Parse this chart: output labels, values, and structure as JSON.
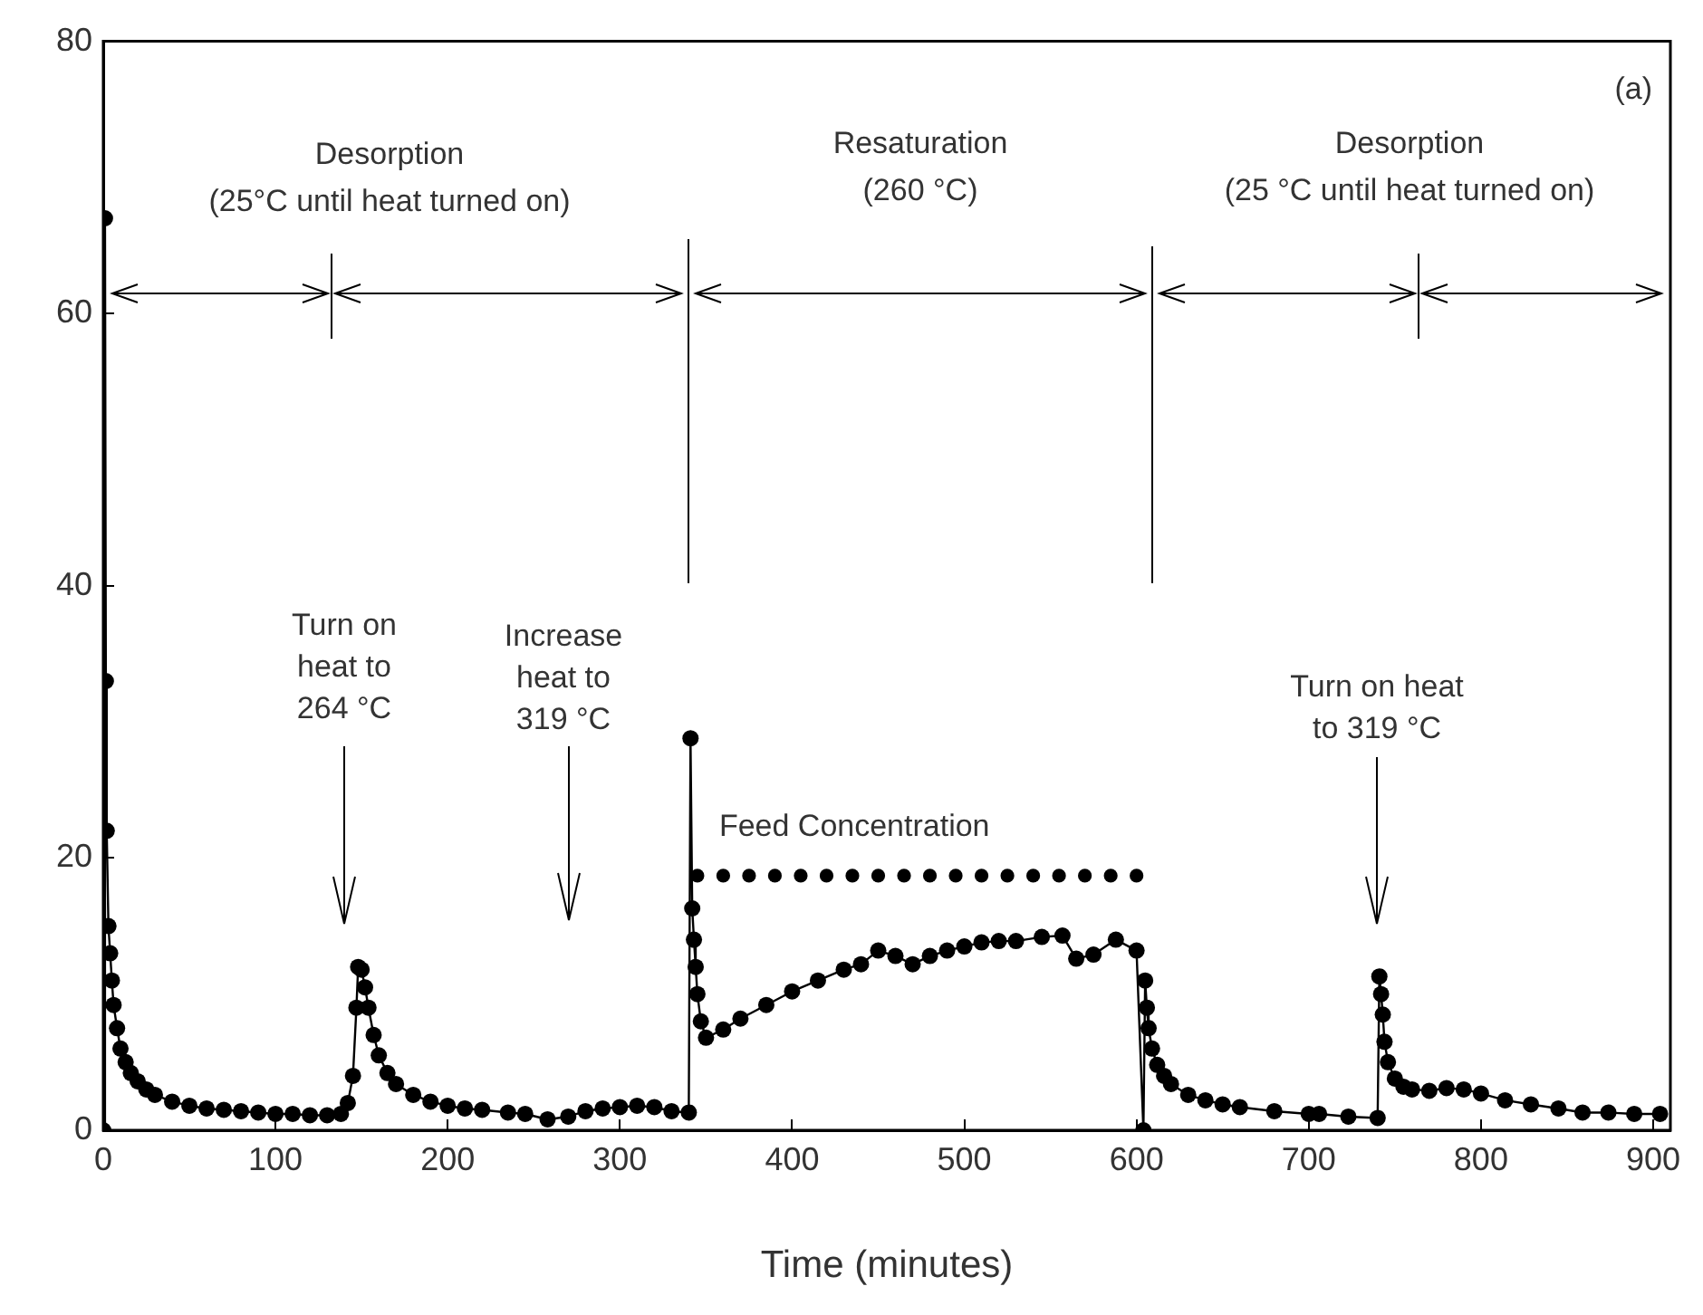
{
  "chart_data": {
    "type": "line",
    "xlabel": "Time (minutes)",
    "xlim": [
      0,
      910
    ],
    "xticks": [
      0,
      100,
      200,
      300,
      400,
      500,
      600,
      700,
      800,
      900
    ],
    "ylim": [
      0,
      80
    ],
    "yticks": [
      0,
      20,
      40,
      60,
      80
    ],
    "marker": "circle",
    "series": [
      {
        "type": "line",
        "color": "#000000",
        "x": [
          0,
          1,
          1.5,
          2,
          3,
          4,
          5,
          6,
          8,
          10,
          13,
          16,
          20,
          25,
          30,
          40,
          50,
          60,
          70,
          80,
          90,
          100,
          110,
          120,
          130,
          138,
          142,
          145,
          147,
          148,
          150,
          152,
          154,
          157,
          160,
          165,
          170,
          180,
          190,
          200,
          210,
          220,
          235,
          245,
          258,
          270,
          280,
          290,
          300,
          310,
          320,
          330,
          340,
          341,
          342,
          343,
          344,
          345,
          347,
          350,
          360,
          370,
          385,
          400,
          415,
          430,
          440,
          450,
          460,
          470,
          480,
          490,
          500,
          510,
          520,
          530,
          545,
          557,
          565,
          575,
          588,
          600,
          604,
          605,
          606,
          607,
          609,
          612,
          616,
          620,
          630,
          640,
          650,
          660,
          680,
          700,
          706,
          723,
          740,
          741,
          742,
          743,
          744,
          746,
          750,
          755,
          760,
          770,
          780,
          790,
          800,
          814,
          829,
          845,
          859,
          874,
          889,
          904
        ],
        "values": [
          0,
          67,
          33,
          22,
          15,
          13,
          11,
          9.2,
          7.5,
          6,
          5,
          4.2,
          3.6,
          3,
          2.6,
          2.1,
          1.8,
          1.6,
          1.5,
          1.4,
          1.3,
          1.2,
          1.2,
          1.1,
          1.1,
          1.2,
          2,
          4,
          9,
          12,
          11.8,
          10.5,
          9,
          7,
          5.5,
          4.2,
          3.4,
          2.6,
          2.1,
          1.8,
          1.6,
          1.5,
          1.3,
          1.2,
          0.8,
          1,
          1.4,
          1.6,
          1.7,
          1.8,
          1.7,
          1.4,
          1.3,
          28.8,
          16.3,
          14,
          12,
          10,
          8,
          6.8,
          7.4,
          8.2,
          9.2,
          10.2,
          11,
          11.8,
          12.2,
          13.2,
          12.8,
          12.2,
          12.8,
          13.2,
          13.5,
          13.8,
          13.9,
          13.9,
          14.2,
          14.3,
          12.6,
          12.9,
          14,
          13.2,
          0,
          11,
          9,
          7.5,
          6,
          4.8,
          4,
          3.4,
          2.6,
          2.2,
          1.9,
          1.7,
          1.4,
          1.2,
          1.2,
          1,
          0.9,
          11.3,
          10,
          8.5,
          6.5,
          5,
          3.8,
          3.2,
          3,
          2.9,
          3.1,
          3,
          2.7,
          2.2,
          1.9,
          1.6,
          1.3,
          1.3,
          1.2,
          1.2
        ]
      },
      {
        "type": "scatter",
        "name": "Feed Concentration",
        "color": "#000000",
        "x": [
          345,
          360,
          375,
          390,
          405,
          420,
          435,
          450,
          465,
          480,
          495,
          510,
          525,
          540,
          555,
          570,
          585,
          600
        ],
        "values": [
          18.7,
          18.7,
          18.7,
          18.7,
          18.7,
          18.7,
          18.7,
          18.7,
          18.7,
          18.7,
          18.7,
          18.7,
          18.7,
          18.7,
          18.7,
          18.7,
          18.7,
          18.7
        ]
      }
    ],
    "annotations": [
      "(a)",
      "Desorption\n(25°C until heat turned on)",
      "Resaturation\n(260 °C)",
      "Desorption\n(25 °C until heat turned on)",
      "Turn on\nheat to\n264 °C",
      "Increase\nheat to\n319 °C",
      "Turn on heat\nto 319 °C"
    ]
  }
}
